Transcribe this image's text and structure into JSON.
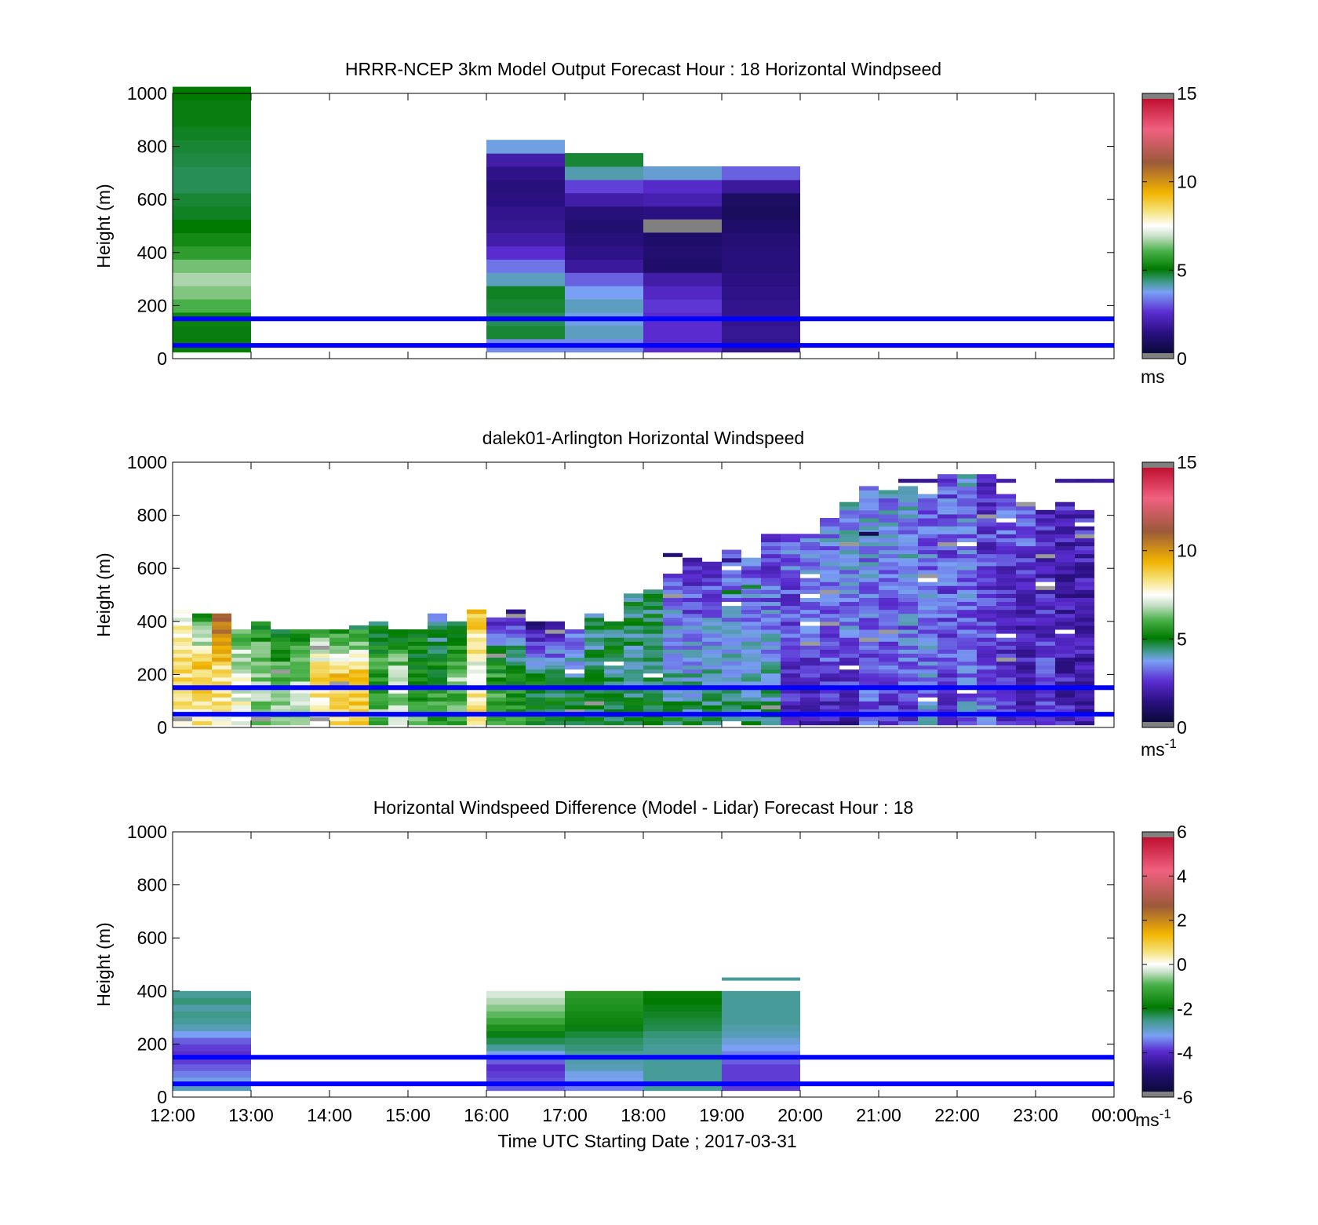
{
  "figure": {
    "xlabel": "Time UTC  Starting Date ; 2017-03-31",
    "x_ticks": [
      "12:00",
      "13:00",
      "14:00",
      "15:00",
      "16:00",
      "17:00",
      "18:00",
      "19:00",
      "20:00",
      "21:00",
      "22:00",
      "23:00",
      "00:00"
    ]
  },
  "chart_data": [
    {
      "type": "heatmap",
      "title": "HRRR-NCEP 3km Model Output   Forecast Hour : 18 Horizontal Windpseed",
      "ylabel": "Height (m)",
      "xlim": [
        12,
        24
      ],
      "ylim": [
        0,
        1000
      ],
      "y_ticks": [
        "0",
        "200",
        "400",
        "600",
        "800",
        "1000"
      ],
      "colorbar": {
        "ticks": [
          "0",
          "5",
          "10",
          "15"
        ],
        "tick_values": [
          0,
          5,
          10,
          15
        ],
        "range": [
          0,
          15
        ],
        "unit": "ms",
        "unit_sup": ""
      },
      "reference_lines_m": [
        50,
        150
      ],
      "columns": [
        {
          "x_start": 12,
          "x_end": 13,
          "y_bottom": 25,
          "cell_height": 50,
          "values": [
            5,
            4.8,
            5.1,
            6,
            6.4,
            6.7,
            6.3,
            5.6,
            5.2,
            4.9,
            4.7,
            4.6,
            4.4,
            4.4,
            4.5,
            4.6,
            4.7,
            4.8,
            4.8,
            4.9
          ]
        },
        {
          "x_start": 16,
          "x_end": 17,
          "y_bottom": 25,
          "cell_height": 50,
          "values": [
            3.3,
            4.6,
            4.4,
            4.6,
            4.7,
            3.8,
            3.1,
            2.4,
            1.8,
            1.5,
            1.4,
            1.2,
            1.1,
            1.3,
            1.8,
            3.6
          ]
        },
        {
          "x_start": 17,
          "x_end": 18,
          "y_bottom": 25,
          "cell_height": 50,
          "values": [
            3.3,
            3.8,
            3.6,
            3.8,
            3.5,
            2.9,
            1.6,
            1.3,
            1.1,
            0.9,
            1.1,
            1.8,
            2.6,
            3.9,
            4.6
          ]
        },
        {
          "x_start": 18,
          "x_end": 19,
          "y_bottom": 25,
          "cell_height": 50,
          "values": [
            2.4,
            2.4,
            2.4,
            2.5,
            2.2,
            1.8,
            0.8,
            0.9,
            0.8,
            0.8,
            1.2,
            1.9,
            2.3,
            3.7
          ]
        },
        {
          "x_start": 19,
          "x_end": 20,
          "y_bottom": 25,
          "cell_height": 50,
          "values": [
            1.4,
            1.5,
            1.4,
            1.4,
            1.3,
            1.2,
            1.1,
            1.1,
            1.0,
            0.8,
            0.6,
            0.7,
            1.6,
            2.9
          ]
        }
      ],
      "masked_cells": [
        {
          "x_start": 18,
          "x_end": 19,
          "y_bottom": 475,
          "y_top": 525
        }
      ]
    },
    {
      "type": "heatmap",
      "title": "dalek01-Arlington  Horizontal Windspeed",
      "ylabel": "Height (m)",
      "xlim": [
        12,
        24
      ],
      "ylim": [
        0,
        1000
      ],
      "y_ticks": [
        "0",
        "200",
        "400",
        "600",
        "800",
        "1000"
      ],
      "colorbar": {
        "ticks": [
          "0",
          "5",
          "10",
          "15"
        ],
        "tick_values": [
          0,
          5,
          10,
          15
        ],
        "range": [
          0,
          15
        ],
        "unit": "ms",
        "unit_sup": "-1"
      },
      "reference_lines_m": [
        50,
        150
      ],
      "columns_start_x": 12,
      "column_width_hours": 0.25,
      "y_bottom": 10,
      "cell_height": 15,
      "top_heights_m": [
        445,
        440,
        440,
        380,
        400,
        380,
        370,
        380,
        370,
        390,
        400,
        380,
        370,
        430,
        410,
        450,
        420,
        450,
        410,
        400,
        380,
        440,
        400,
        510,
        530,
        590,
        650,
        630,
        670,
        650,
        740,
        740,
        730,
        790,
        860,
        910,
        900,
        910,
        890,
        960,
        960,
        960,
        880,
        860,
        830,
        850,
        830
      ],
      "column_profiles": [
        {
          "low": 8.0,
          "mid": 8.5,
          "top": 7.5
        },
        {
          "low": 8.3,
          "mid": 9.0,
          "top": 5.0
        },
        {
          "low": 7.8,
          "mid": 8.5,
          "top": 11.0
        },
        {
          "low": 7.3,
          "mid": 7.5,
          "top": 6.0
        },
        {
          "low": 6.0,
          "mid": 6.8,
          "top": 5.0
        },
        {
          "low": 6.5,
          "mid": 6.2,
          "top": 4.8
        },
        {
          "low": 6.8,
          "mid": 6.5,
          "top": 5.0
        },
        {
          "low": 7.5,
          "mid": 8.8,
          "top": 6.0
        },
        {
          "low": 8.6,
          "mid": 9.2,
          "top": 5.5
        },
        {
          "low": 8.5,
          "mid": 9.2,
          "top": 5.0
        },
        {
          "low": 6.2,
          "mid": 5.8,
          "top": 4.8
        },
        {
          "low": 6.5,
          "mid": 7.0,
          "top": 4.8
        },
        {
          "low": 6.0,
          "mid": 5.6,
          "top": 4.5
        },
        {
          "low": 5.6,
          "mid": 5.2,
          "top": 3.5
        },
        {
          "low": 5.5,
          "mid": 6.5,
          "top": 4.6
        },
        {
          "low": 8.5,
          "mid": 7.5,
          "top": 9.0
        },
        {
          "low": 6.5,
          "mid": 5.4,
          "top": 2.5
        },
        {
          "low": 5.4,
          "mid": 4.8,
          "top": 2.0
        },
        {
          "low": 5.2,
          "mid": 4.6,
          "top": 1.2
        },
        {
          "low": 5.0,
          "mid": 4.5,
          "top": 1.0
        },
        {
          "low": 4.9,
          "mid": 4.4,
          "top": 2.8
        },
        {
          "low": 4.8,
          "mid": 4.3,
          "top": 4.4
        },
        {
          "low": 4.8,
          "mid": 4.4,
          "top": 4.6
        },
        {
          "low": 4.7,
          "mid": 4.3,
          "top": 4.5
        },
        {
          "low": 4.6,
          "mid": 4.4,
          "top": 4.6
        },
        {
          "low": 4.6,
          "mid": 3.5,
          "top": 2.8
        },
        {
          "low": 4.5,
          "mid": 3.2,
          "top": 2.2
        },
        {
          "low": 4.4,
          "mid": 3.5,
          "top": 2.5
        },
        {
          "low": 4.5,
          "mid": 3.4,
          "top": 2.6
        },
        {
          "low": 4.4,
          "mid": 3.3,
          "top": 2.9
        },
        {
          "low": 4.4,
          "mid": 3.3,
          "top": 2.4
        },
        {
          "low": 2.0,
          "mid": 2.6,
          "top": 3.0
        },
        {
          "low": 1.9,
          "mid": 2.8,
          "top": 3.1
        },
        {
          "low": 2.0,
          "mid": 3.0,
          "top": 3.3
        },
        {
          "low": 1.8,
          "mid": 3.2,
          "top": 3.4
        },
        {
          "low": 2.8,
          "mid": 3.0,
          "top": 3.5
        },
        {
          "low": 2.2,
          "mid": 3.1,
          "top": 3.3
        },
        {
          "low": 2.4,
          "mid": 3.2,
          "top": 3.6
        },
        {
          "low": 3.2,
          "mid": 3.3,
          "top": 3.0
        },
        {
          "low": 2.6,
          "mid": 2.8,
          "top": 2.9
        },
        {
          "low": 3.1,
          "mid": 3.0,
          "top": 3.3
        },
        {
          "low": 3.3,
          "mid": 2.5,
          "top": 2.4
        },
        {
          "low": 2.4,
          "mid": 2.0,
          "top": 3.0
        },
        {
          "low": 2.2,
          "mid": 1.8,
          "top": 3.2
        },
        {
          "low": 2.8,
          "mid": 2.2,
          "top": 2.2
        },
        {
          "low": 2.0,
          "mid": 1.9,
          "top": 2.0
        },
        {
          "low": 1.9,
          "mid": 1.8,
          "top": 2.2
        }
      ],
      "isolated_cells": [
        {
          "x": 18.25,
          "y": 650,
          "value": 1.0
        },
        {
          "x": 19.0,
          "y": 630,
          "value": 1.4
        },
        {
          "x": 19.0,
          "y": 510,
          "value": 4.8
        },
        {
          "x": 19.25,
          "y": 530,
          "value": 4.6
        },
        {
          "x": 20.75,
          "y": 730,
          "value": 0.5
        },
        {
          "x": 21.25,
          "y": 930,
          "value": 1.4
        },
        {
          "x": 21.5,
          "y": 930,
          "value": 1.5
        },
        {
          "x": 22.0,
          "y": 930,
          "value": 3.5
        },
        {
          "x": 22.25,
          "y": 930,
          "value": 2.5
        },
        {
          "x": 22.5,
          "y": 930,
          "value": 1.8
        },
        {
          "x": 23.25,
          "y": 930,
          "value": 1.6
        },
        {
          "x": 23.5,
          "y": 930,
          "value": 1.5
        },
        {
          "x": 23.75,
          "y": 930,
          "value": 1.6
        }
      ]
    },
    {
      "type": "heatmap",
      "title": "Horizontal Windspeed Difference (Model - Lidar) Forecast Hour : 18",
      "ylabel": "Height (m)",
      "xlim": [
        12,
        24
      ],
      "ylim": [
        0,
        1000
      ],
      "y_ticks": [
        "0",
        "200",
        "400",
        "600",
        "800",
        "1000"
      ],
      "colorbar": {
        "ticks": [
          "-6",
          "-4",
          "-2",
          "0",
          "2",
          "4",
          "6"
        ],
        "tick_values": [
          -6,
          -4,
          -2,
          0,
          2,
          4,
          6
        ],
        "range": [
          -6,
          6
        ],
        "unit": "ms",
        "unit_sup": "-1"
      },
      "reference_lines_m": [
        50,
        150
      ],
      "columns": [
        {
          "x_start": 12,
          "x_end": 13,
          "y_bottom": 25,
          "cell_height": 25,
          "values": [
            -3.0,
            -3.3,
            -3.6,
            -3.8,
            -4.0,
            -4.1,
            -4.0,
            -3.8,
            -3.4,
            -3.0,
            -2.8,
            -2.7,
            -2.9,
            -2.6,
            -2.8
          ]
        },
        {
          "x_start": 16,
          "x_end": 17,
          "y_bottom": 25,
          "cell_height": 25,
          "values": [
            -3.8,
            -3.9,
            -4.0,
            -4.1,
            -3.8,
            -3.4,
            -2.8,
            -2.4,
            -2.1,
            -1.6,
            -1.2,
            -0.9,
            -0.7,
            -0.5,
            -0.3
          ]
        },
        {
          "x_start": 17,
          "x_end": 18,
          "y_bottom": 25,
          "cell_height": 25,
          "values": [
            -3.6,
            -3.4,
            -3.3,
            -3.0,
            -2.9,
            -2.8,
            -2.6,
            -2.5,
            -2.3,
            -2.1,
            -1.8,
            -1.7,
            -1.6,
            -1.5,
            -1.4
          ]
        },
        {
          "x_start": 18,
          "x_end": 19,
          "y_bottom": 25,
          "cell_height": 25,
          "values": [
            -2.8,
            -2.8,
            -2.8,
            -2.8,
            -2.8,
            -2.8,
            -2.8,
            -2.7,
            -2.6,
            -2.4,
            -2.3,
            -2.2,
            -2.1,
            -2.0,
            -1.9
          ]
        },
        {
          "x_start": 19,
          "x_end": 20,
          "y_bottom": 25,
          "cell_height": 25,
          "values": [
            -4.0,
            -4.0,
            -4.0,
            -4.0,
            -3.8,
            -3.6,
            -3.4,
            -3.2,
            -3.0,
            -2.9,
            -2.8,
            -2.8,
            -2.8,
            -2.8,
            -2.8
          ]
        }
      ],
      "isolated_cells": [
        {
          "x_start": 19,
          "x_end": 20,
          "y": 445,
          "value": -2.8
        }
      ]
    }
  ]
}
